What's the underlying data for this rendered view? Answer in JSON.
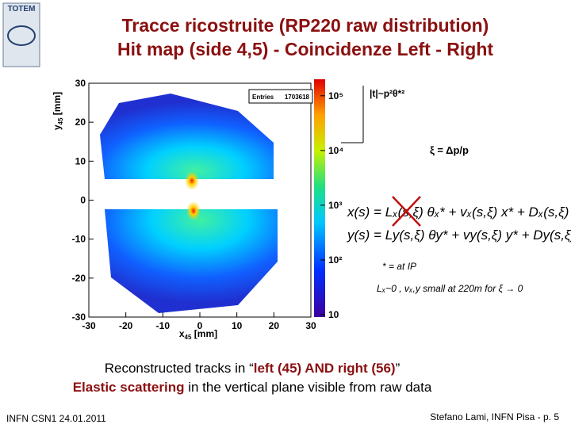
{
  "logo": "TOTEM",
  "header": {
    "title": [
      "Tracce ricostruite (RP220 raw distribution)",
      "Hit map (side 4,5) - Coincidenze Left - Right"
    ]
  },
  "hitmap": {
    "xlabel": {
      "var": "x",
      "sub": "45",
      "unit": "[mm]"
    },
    "ylabel": {
      "var": "y",
      "sub": "45",
      "unit": "[mm]"
    },
    "xlim": [
      -30,
      30
    ],
    "ylim": [
      -30,
      30
    ],
    "xticks": [
      -30,
      -20,
      -10,
      0,
      10,
      20,
      30
    ],
    "yticks": [
      -30,
      -20,
      -10,
      0,
      10,
      20,
      30
    ],
    "zlim": [
      10,
      200000
    ],
    "zticks": [
      {
        "value": 10,
        "label": "10"
      },
      {
        "value": 100,
        "label": "10²"
      },
      {
        "value": 1000,
        "label": "10³"
      },
      {
        "value": 10000,
        "label": "10⁴"
      },
      {
        "value": 100000,
        "label": "10⁵"
      }
    ],
    "stats": {
      "label": "Entries",
      "value": 1703618
    }
  },
  "annotations": {
    "t": "|t|~p²θ*²",
    "xi": "ξ = Δp/p",
    "eq_x": "x(s) = Lₓ(s,ξ) θₓ* + vₓ(s,ξ) x* + Dₓ(s,ξ) ξ",
    "eq_y": "y(s) = Ly(s,ξ) θy* + vy(s,ξ) y* + Dy(s,ξ) ξ",
    "ip": "* = at IP",
    "small": "Lₓ~0 , vₓ,y small at 220m for ξ → 0"
  },
  "body": {
    "line1": [
      "Reconstructed tracks in “",
      "left (45) AND right (56)",
      "”"
    ],
    "line2": [
      "Elastic scattering",
      " in the vertical plane visible from raw data"
    ]
  },
  "footer": {
    "left": "INFN CSN1 24.01.2011",
    "right": "Stefano Lami, INFN Pisa - p. 5"
  }
}
